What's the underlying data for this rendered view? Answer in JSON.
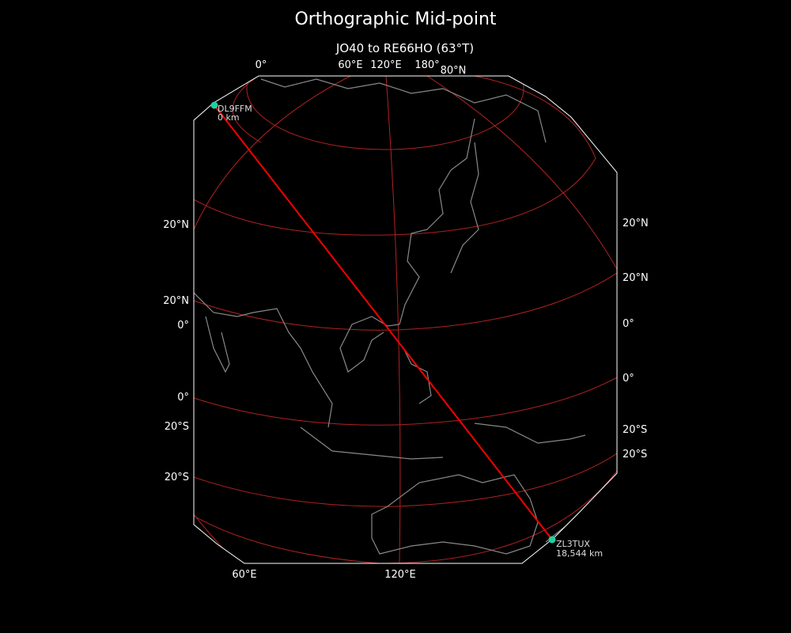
{
  "title": "Orthographic Mid-point",
  "subtitle": "JO40 to RE66HO (63°T)",
  "colors": {
    "background": "#000000",
    "path": "#ff0000",
    "graticule": "#b22222",
    "coastline": "#888888",
    "marker": "#20d0a0",
    "frame": "#ffffff"
  },
  "labels": {
    "top": [
      "0°",
      "60°E",
      "120°E",
      "180°",
      "80°N"
    ],
    "left": [
      "20°N",
      "20°N",
      "0°",
      "0°",
      "20°S",
      "20°S"
    ],
    "right": [
      "20°N",
      "20°N",
      "0°",
      "0°",
      "20°S",
      "20°S"
    ],
    "bottom": [
      "60°E",
      "120°E"
    ]
  },
  "start": {
    "call": "DL9FFM",
    "distance": "0 km"
  },
  "end": {
    "call": "ZL3TUX",
    "distance": "18,544 km"
  }
}
